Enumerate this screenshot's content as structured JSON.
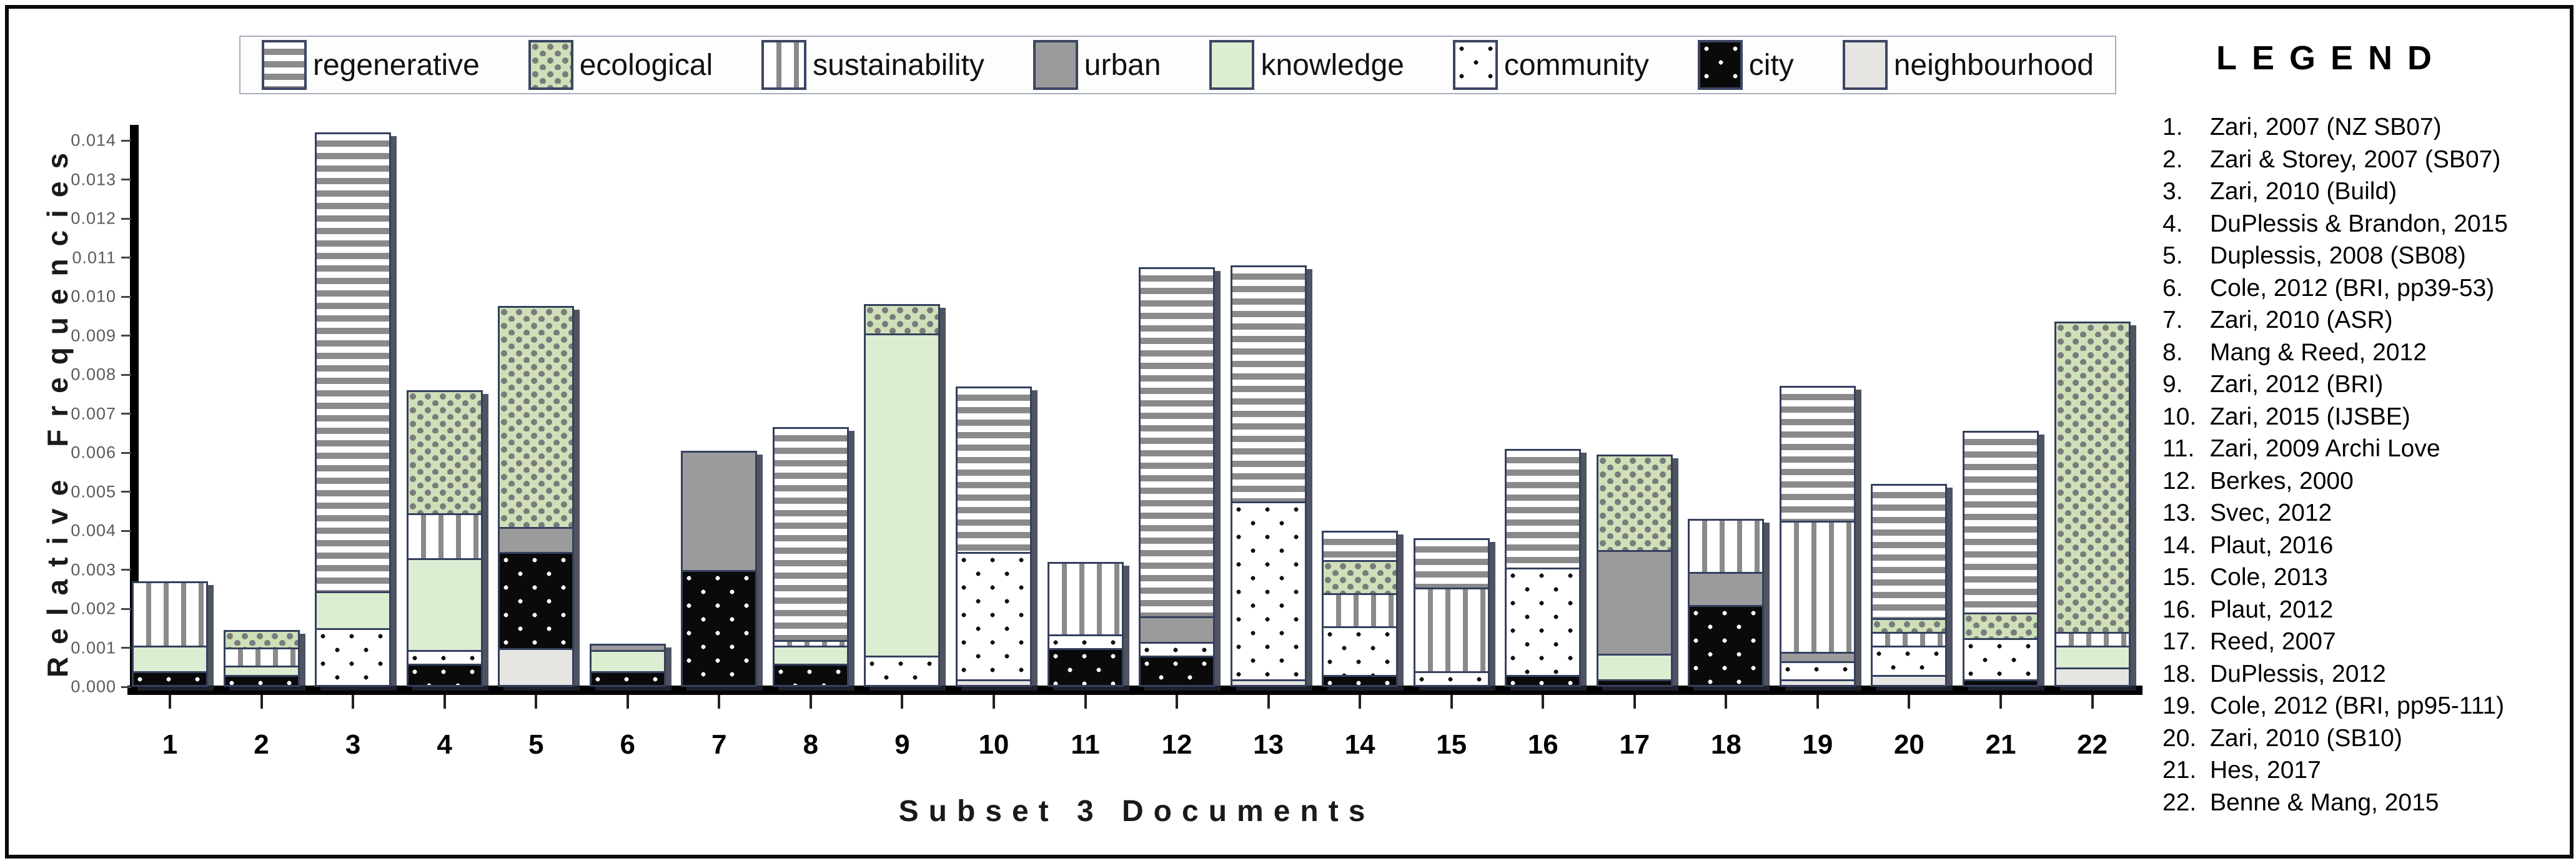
{
  "chart_data": {
    "type": "stacked-bar",
    "title": "",
    "xlabel": "Subset 3 Documents",
    "ylabel": "Relative Frequencies",
    "ylim": [
      0,
      0.014
    ],
    "grid": false,
    "legend_position": "top",
    "y_tick_labels": [
      "0.000",
      "0.001",
      "0.002",
      "0.003",
      "0.004",
      "0.005",
      "0.006",
      "0.007",
      "0.008",
      "0.009",
      "0.010",
      "0.011",
      "0.012",
      "0.013",
      "0.014"
    ],
    "categories": [
      "1",
      "2",
      "3",
      "4",
      "5",
      "6",
      "7",
      "8",
      "9",
      "10",
      "11",
      "12",
      "13",
      "14",
      "15",
      "16",
      "17",
      "18",
      "19",
      "20",
      "21",
      "22"
    ],
    "stack_order": "bottom-to-top",
    "series": [
      {
        "name": "neighbourhood",
        "pattern": "solid",
        "fill": "#e6e5e2",
        "values": [
          0,
          0,
          0,
          0,
          0.001,
          0,
          0,
          0,
          0,
          0.0002,
          0,
          0,
          0.0002,
          0,
          0,
          0,
          0,
          0,
          0.0002,
          0.0003,
          0,
          0.0005
        ]
      },
      {
        "name": "city",
        "pattern": "white-dots-on-black",
        "fill": "#0a0a0a",
        "dot": "#ffffff",
        "values": [
          0.0004,
          0.0003,
          0,
          0.0006,
          0.0025,
          0.0004,
          0.003,
          0.0006,
          0,
          0,
          0.001,
          0.0008,
          0,
          0.0003,
          0,
          0.0003,
          0.0002,
          0.0021,
          0,
          0,
          0.0002,
          0
        ]
      },
      {
        "name": "community",
        "pattern": "black-dots-on-white",
        "fill": "#ffffff",
        "dot": "#101010",
        "values": [
          0,
          0,
          0.0015,
          0.0004,
          0,
          0,
          0,
          0,
          0.0008,
          0.0033,
          0.0004,
          0.0004,
          0.0046,
          0.0013,
          0.0004,
          0.0028,
          0,
          0,
          0.0005,
          0.0008,
          0.0011,
          0
        ]
      },
      {
        "name": "knowledge",
        "pattern": "solid",
        "fill": "#dcedd2",
        "values": [
          0.0007,
          0.0003,
          0.001,
          0.0024,
          0,
          0.0006,
          0,
          0.0005,
          0.0083,
          0,
          0,
          0,
          0,
          0,
          0,
          0,
          0.0007,
          0,
          0,
          0,
          0,
          0.0006
        ]
      },
      {
        "name": "urban",
        "pattern": "solid",
        "fill": "#9b9b9b",
        "values": [
          0,
          0,
          0,
          0,
          0.0007,
          0.0002,
          0.0031,
          0,
          0,
          0,
          0,
          0.0007,
          0,
          0,
          0,
          0,
          0.0027,
          0.0009,
          0.0003,
          0,
          0,
          0
        ]
      },
      {
        "name": "sustainability",
        "pattern": "vertical-stripes",
        "fill": "#ffffff",
        "stripe": "#8a8a8a",
        "values": [
          0.0017,
          0.0005,
          0,
          0.0012,
          0,
          0,
          0,
          0.0002,
          0,
          0,
          0.0019,
          0,
          0,
          0.0009,
          0.0022,
          0,
          0,
          0.0014,
          0.0034,
          0.0004,
          0,
          0.0004
        ]
      },
      {
        "name": "ecological",
        "pattern": "checkered-green",
        "fill": "#cfe0b8",
        "dot": "#7b7b7b",
        "values": [
          0,
          0.0005,
          0,
          0.0032,
          0.0057,
          0,
          0,
          0,
          0.0008,
          0,
          0,
          0,
          0,
          0.0009,
          0,
          0,
          0.0025,
          0,
          0,
          0.0004,
          0.0007,
          0.008
        ]
      },
      {
        "name": "regenerative",
        "pattern": "horizontal-stripes",
        "fill": "#ffffff",
        "stripe": "#8a8a8a",
        "values": [
          0,
          0,
          0.0118,
          0,
          0,
          0,
          0,
          0.0055,
          0,
          0.0043,
          0,
          0.009,
          0.0061,
          0.0008,
          0.0013,
          0.0031,
          0,
          0,
          0.0035,
          0.0035,
          0.0047,
          0
        ]
      }
    ],
    "legend_order": [
      "regenerative",
      "ecological",
      "sustainability",
      "urban",
      "knowledge",
      "community",
      "city",
      "neighbourhood"
    ],
    "colors": {
      "segment_border": "#35405e",
      "axis": "#000000",
      "tick_label": "#5a5a5a"
    }
  },
  "right_legend": {
    "title": "LEGEND",
    "items": [
      "Zari, 2007 (NZ SB07)",
      "Zari & Storey, 2007 (SB07)",
      "Zari, 2010 (Build)",
      "DuPlessis & Brandon, 2015",
      "Duplessis, 2008 (SB08)",
      "Cole, 2012 (BRI, pp39-53)",
      "Zari, 2010 (ASR)",
      "Mang & Reed, 2012",
      "Zari, 2012 (BRI)",
      "Zari, 2015 (IJSBE)",
      "Zari, 2009 Archi Love",
      "Berkes, 2000",
      "Svec, 2012",
      "Plaut, 2016",
      "Cole, 2013",
      "Plaut, 2012",
      "Reed, 2007",
      "DuPlessis, 2012",
      "Cole, 2012 (BRI, pp95-111)",
      "Zari, 2010 (SB10)",
      "Hes, 2017",
      "Benne & Mang, 2015"
    ]
  }
}
